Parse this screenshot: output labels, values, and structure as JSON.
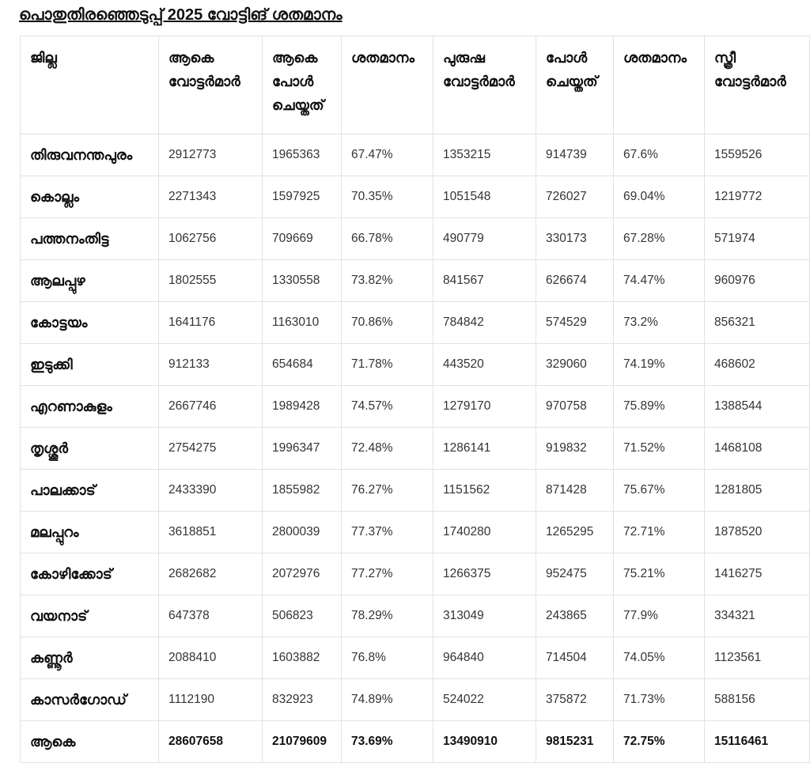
{
  "title": "പൊതുതിരഞ്ഞെടുപ്പ് 2025 വോട്ടിങ് ശതമാനം",
  "headers": [
    "ജില്ല",
    "ആകെ വോട്ടർമാർ",
    "ആകെ പോൾ ചെയ്തത്",
    "ശതമാനം",
    "പുരുഷ വോട്ടർമാർ",
    "പോൾ ചെയ്തത്",
    "ശതമാനം",
    "സ്ത്രീ വോട്ടർമാർ"
  ],
  "rows": [
    [
      "തിരുവനന്തപുരം",
      "2912773",
      "1965363",
      "67.47%",
      "1353215",
      "914739",
      "67.6%",
      "1559526"
    ],
    [
      "കൊല്ലം",
      "2271343",
      "1597925",
      "70.35%",
      "1051548",
      "726027",
      "69.04%",
      "1219772"
    ],
    [
      "പത്തനംതിട്ട",
      "1062756",
      "709669",
      "66.78%",
      "490779",
      "330173",
      "67.28%",
      "571974"
    ],
    [
      "ആലപ്പുഴ",
      "1802555",
      "1330558",
      "73.82%",
      "841567",
      "626674",
      "74.47%",
      "960976"
    ],
    [
      "കോട്ടയം",
      "1641176",
      "1163010",
      "70.86%",
      "784842",
      "574529",
      "73.2%",
      "856321"
    ],
    [
      "ഇടുക്കി",
      "912133",
      "654684",
      "71.78%",
      "443520",
      "329060",
      "74.19%",
      "468602"
    ],
    [
      "എറണാകുളം",
      "2667746",
      "1989428",
      "74.57%",
      "1279170",
      "970758",
      "75.89%",
      "1388544"
    ],
    [
      "തൃശ്ശൂർ",
      "2754275",
      "1996347",
      "72.48%",
      "1286141",
      "919832",
      "71.52%",
      "1468108"
    ],
    [
      "പാലക്കാട്",
      "2433390",
      "1855982",
      "76.27%",
      "1151562",
      "871428",
      "75.67%",
      "1281805"
    ],
    [
      "മലപ്പുറം",
      "3618851",
      "2800039",
      "77.37%",
      "1740280",
      "1265295",
      "72.71%",
      "1878520"
    ],
    [
      "കോഴിക്കോട്",
      "2682682",
      "2072976",
      "77.27%",
      "1266375",
      "952475",
      "75.21%",
      "1416275"
    ],
    [
      "വയനാട്",
      "647378",
      "506823",
      "78.29%",
      "313049",
      "243865",
      "77.9%",
      "334321"
    ],
    [
      "കണ്ണൂർ",
      "2088410",
      "1603882",
      "76.8%",
      "964840",
      "714504",
      "74.05%",
      "1123561"
    ],
    [
      "കാസർഗോഡ്",
      "1112190",
      "832923",
      "74.89%",
      "524022",
      "375872",
      "71.73%",
      "588156"
    ]
  ],
  "total": [
    "ആകെ",
    "28607658",
    "21079609",
    "73.69%",
    "13490910",
    "9815231",
    "72.75%",
    "15116461"
  ]
}
